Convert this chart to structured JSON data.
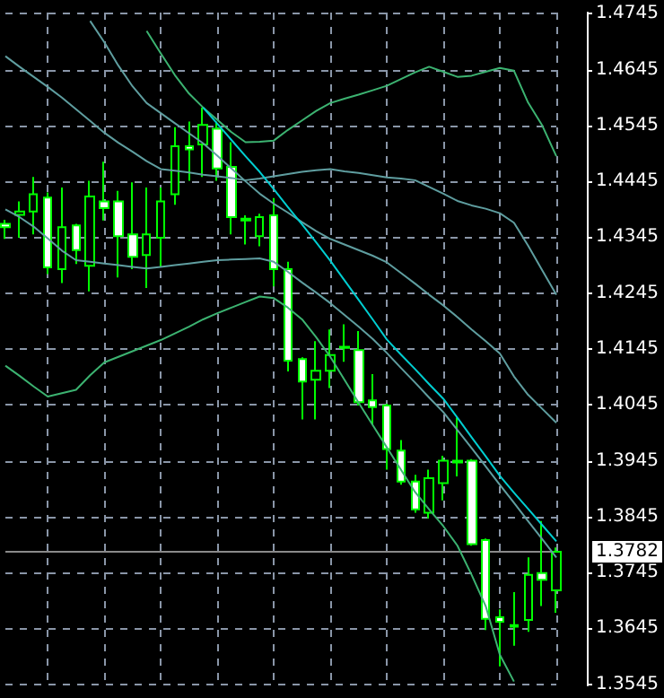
{
  "chart_data": {
    "type": "candlestick",
    "categories": [
      null,
      null,
      null,
      null,
      null,
      null,
      null,
      null,
      null,
      null,
      null,
      null,
      null,
      null,
      null,
      null,
      null,
      null,
      null,
      null,
      null,
      null,
      null,
      null,
      null,
      null,
      null,
      null,
      null,
      null,
      null,
      null,
      null,
      null,
      null,
      null,
      null,
      null,
      null,
      null
    ],
    "series": [
      {
        "color": "#00ff00",
        "ohlc": [
          [
            1.4369,
            1.4376,
            1.4342,
            1.4363
          ],
          [
            1.4385,
            1.4409,
            1.4344,
            1.4391
          ],
          [
            1.4391,
            1.4453,
            1.435,
            1.4422
          ],
          [
            1.4416,
            1.4425,
            1.4279,
            1.4291
          ],
          [
            1.4288,
            1.4434,
            1.4263,
            1.4363
          ],
          [
            1.4366,
            1.4369,
            1.4297,
            1.4322
          ],
          [
            1.4294,
            1.4446,
            1.4248,
            1.4418
          ],
          [
            1.4409,
            1.448,
            1.4375,
            1.4397
          ],
          [
            1.4409,
            1.4428,
            1.4273,
            1.4347
          ],
          [
            1.435,
            1.4443,
            1.4288,
            1.431
          ],
          [
            1.4313,
            1.4434,
            1.4254,
            1.435
          ],
          [
            1.4344,
            1.4434,
            1.4291,
            1.4409
          ],
          [
            1.4422,
            1.4542,
            1.4403,
            1.4508
          ],
          [
            1.4508,
            1.4552,
            1.4446,
            1.4502
          ],
          [
            1.4511,
            1.4577,
            1.4453,
            1.4546
          ],
          [
            1.4539,
            1.4552,
            1.4446,
            1.4468
          ],
          [
            1.4471,
            1.4515,
            1.435,
            1.4381
          ],
          [
            1.4378,
            1.4384,
            1.4332,
            1.4375
          ],
          [
            1.4347,
            1.4387,
            1.4329,
            1.4381
          ],
          [
            1.4384,
            1.4415,
            1.4257,
            1.4288
          ],
          [
            1.4288,
            1.4301,
            1.4105,
            1.4124
          ],
          [
            1.4127,
            1.413,
            1.4019,
            1.4087
          ],
          [
            1.409,
            1.4159,
            1.4019,
            1.4106
          ],
          [
            1.4106,
            1.418,
            1.4075,
            1.4134
          ],
          [
            1.4149,
            1.4189,
            1.4122,
            1.4147
          ],
          [
            1.4143,
            1.4177,
            1.4044,
            1.405
          ],
          [
            1.4053,
            1.41,
            1.401,
            1.4041
          ],
          [
            1.4044,
            1.4047,
            1.3929,
            1.3966
          ],
          [
            1.3963,
            1.3982,
            1.3902,
            1.3908
          ],
          [
            1.3908,
            1.392,
            1.3852,
            1.3858
          ],
          [
            1.3852,
            1.3929,
            1.3842,
            1.3914
          ],
          [
            1.3905,
            1.3954,
            1.3874,
            1.3945
          ],
          [
            1.3945,
            1.4022,
            1.3917,
            1.3942
          ],
          [
            1.3945,
            1.3948,
            1.3793,
            1.3796
          ],
          [
            1.3803,
            1.3806,
            1.3642,
            1.3662
          ],
          [
            1.3665,
            1.3679,
            1.3577,
            1.3657
          ],
          [
            1.3651,
            1.371,
            1.3614,
            1.3648
          ],
          [
            1.366,
            1.3772,
            1.3639,
            1.3741
          ],
          [
            1.3744,
            1.3837,
            1.3685,
            1.3732
          ],
          [
            1.3713,
            1.379,
            1.3673,
            1.3782
          ]
        ]
      },
      {
        "type": "line",
        "color": "#3cb371",
        "values": [
          null,
          null,
          null,
          null,
          null,
          null,
          null,
          null,
          null,
          null,
          1.4714,
          1.4674,
          1.4635,
          1.4602,
          1.4577,
          1.4555,
          1.4533,
          1.4515,
          1.4516,
          1.4518,
          1.4537,
          1.4554,
          1.4571,
          1.4585,
          1.4593,
          1.46,
          1.4608,
          1.4616,
          1.4628,
          1.464,
          1.465,
          1.4641,
          1.4632,
          1.4634,
          1.4641,
          1.4648,
          1.4643,
          1.4586,
          1.4545,
          1.449
        ]
      },
      {
        "type": "line",
        "color": "#3cb371",
        "values": [
          1.4115,
          1.4097,
          1.4078,
          1.406,
          1.4066,
          1.4072,
          1.4098,
          1.4121,
          1.4131,
          1.4141,
          1.4151,
          1.4161,
          1.4173,
          1.4185,
          1.4198,
          1.4209,
          1.4219,
          1.4229,
          1.4239,
          1.4236,
          1.4219,
          1.4198,
          1.4166,
          1.4131,
          1.409,
          1.4049,
          1.4009,
          1.3969,
          1.3929,
          1.3889,
          1.3858,
          1.3828,
          1.3793,
          1.3741,
          1.3685,
          1.3598,
          1.355,
          null,
          null,
          null
        ]
      },
      {
        "type": "line",
        "color": "#5f9ea0",
        "values": [
          1.4669,
          1.465,
          1.4632,
          1.4614,
          1.4595,
          1.4574,
          1.4553,
          1.4532,
          1.4514,
          1.4498,
          1.4481,
          1.4467,
          1.4464,
          1.4461,
          1.4457,
          1.4454,
          1.4451,
          1.4447,
          1.445,
          1.4454,
          1.4458,
          1.4462,
          1.4465,
          1.4467,
          1.4463,
          1.446,
          1.4456,
          1.4452,
          1.445,
          1.4447,
          1.4435,
          1.4423,
          1.441,
          1.4402,
          1.4396,
          1.4388,
          1.4371,
          1.433,
          1.4286,
          1.4242
        ]
      },
      {
        "type": "line",
        "color": "#5f9ea0",
        "values": [
          null,
          null,
          null,
          null,
          null,
          null,
          1.4732,
          1.4694,
          1.4652,
          1.4615,
          1.4585,
          1.4567,
          1.4549,
          1.4531,
          1.4513,
          1.4491,
          1.4468,
          1.4445,
          1.4423,
          1.4405,
          1.4389,
          1.4372,
          1.4356,
          1.4342,
          1.4332,
          1.4322,
          1.4312,
          1.43,
          1.4281,
          1.4262,
          1.4242,
          1.4223,
          1.4202,
          1.418,
          1.4159,
          1.4137,
          1.4096,
          1.4063,
          1.4038,
          1.4013
        ]
      },
      {
        "type": "line",
        "color": "#5f9ea0",
        "values": [
          1.4395,
          1.4381,
          1.4364,
          1.4343,
          1.4321,
          1.4304,
          1.4301,
          1.4298,
          1.4295,
          1.4292,
          1.4289,
          1.4292,
          1.4295,
          1.4298,
          1.4301,
          1.4304,
          1.4305,
          1.4306,
          1.4307,
          1.4301,
          1.4283,
          1.4264,
          1.4246,
          1.4227,
          1.4206,
          1.4185,
          1.4163,
          1.4138,
          1.4111,
          1.4085,
          1.4058,
          1.4032,
          1.4,
          1.3968,
          1.3935,
          1.3902,
          1.387,
          1.3837,
          1.3805,
          1.3772
        ]
      },
      {
        "type": "line",
        "color": "#00ced1",
        "values": [
          null,
          null,
          null,
          null,
          null,
          null,
          null,
          null,
          null,
          null,
          null,
          null,
          null,
          null,
          1.4577,
          1.4548,
          1.4519,
          1.449,
          1.4462,
          1.4431,
          1.4399,
          1.4368,
          1.4336,
          1.4303,
          1.4268,
          1.4233,
          1.4198,
          1.4162,
          1.4135,
          1.4109,
          1.4082,
          1.4056,
          1.4022,
          1.3987,
          1.3953,
          1.3918,
          1.3888,
          1.3859,
          1.383,
          1.3801
        ]
      }
    ],
    "ylim": [
      1.3543,
      1.4747
    ],
    "yticks": [
      1.4745,
      1.4645,
      1.4545,
      1.4445,
      1.4345,
      1.4245,
      1.4145,
      1.4045,
      1.3945,
      1.3845,
      1.3745,
      1.3645,
      1.3545
    ],
    "tick_labels": "y",
    "grid": true,
    "marker": "none",
    "line_style": "solid",
    "ref_lines": [
      {
        "axis": "y",
        "value": 1.3782,
        "label": "1.3782",
        "color": "#8a8a8a"
      }
    ]
  }
}
